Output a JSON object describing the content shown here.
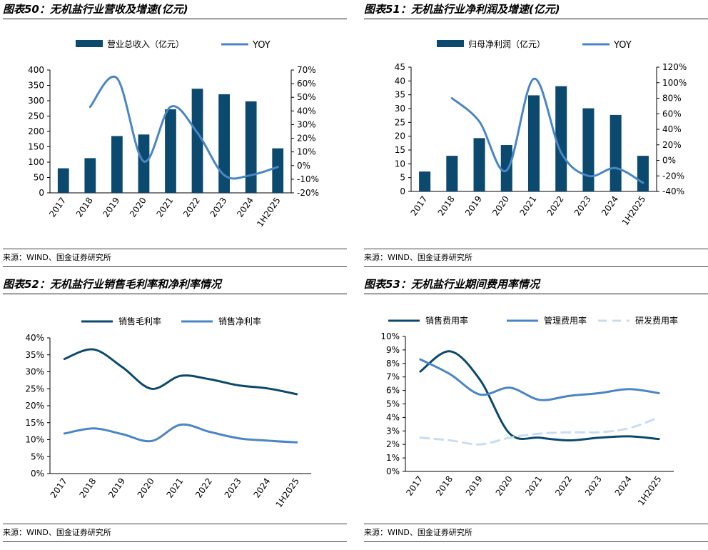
{
  "colors": {
    "dark": "#0b4a6e",
    "medium": "#4a86c5",
    "light": "#c9ddf0"
  },
  "panels": [
    {
      "title": "图表50：无机盐行业营收及增速(亿元)",
      "source": "来源：WIND、国金证券研究所",
      "chart_data": {
        "type": "bar",
        "categories": [
          "2017",
          "2018",
          "2019",
          "2020",
          "2021",
          "2022",
          "2023",
          "2024",
          "1H2025"
        ],
        "ylim": [
          0,
          400
        ],
        "yticks": [
          "0",
          "50",
          "100",
          "150",
          "200",
          "250",
          "300",
          "350",
          "400"
        ],
        "y2lim": [
          -20,
          70
        ],
        "y2ticks": [
          "-20%",
          "-10%",
          "0%",
          "10%",
          "20%",
          "30%",
          "40%",
          "50%",
          "60%",
          "70%"
        ],
        "legend_position": "top",
        "series": [
          {
            "name": "营业总收入（亿元）",
            "type": "bar",
            "axis": "left",
            "values": [
              80,
              113,
              185,
              190,
              272,
              339,
              321,
              298,
              145
            ]
          },
          {
            "name": "YOY",
            "type": "line",
            "axis": "right",
            "values": [
              null,
              43,
              64,
              3,
              43,
              24,
              -7,
              -7,
              -1
            ]
          }
        ]
      }
    },
    {
      "title": "图表51：无机盐行业净利润及增速(亿元)",
      "source": "来源：WIND、国金证券研究所",
      "chart_data": {
        "type": "bar",
        "categories": [
          "2017",
          "2018",
          "2019",
          "2020",
          "2021",
          "2022",
          "2023",
          "2024",
          "1H2025"
        ],
        "ylim": [
          0,
          45
        ],
        "yticks": [
          "0",
          "5",
          "10",
          "15",
          "20",
          "25",
          "30",
          "35",
          "40",
          "45"
        ],
        "y2lim": [
          -40,
          120
        ],
        "y2ticks": [
          "-40%",
          "-20%",
          "0%",
          "20%",
          "40%",
          "60%",
          "80%",
          "100%",
          "120%"
        ],
        "legend_position": "top",
        "series": [
          {
            "name": "归母净利润（亿元）",
            "type": "bar",
            "axis": "left",
            "values": [
              7.2,
              12.9,
              19.3,
              16.8,
              34.8,
              38.1,
              30.1,
              27.7,
              12.9
            ]
          },
          {
            "name": "YOY",
            "type": "line",
            "axis": "right",
            "values": [
              null,
              80,
              50,
              -13,
              105,
              10,
              -20,
              -10,
              -29
            ]
          }
        ]
      }
    },
    {
      "title": "图表52：无机盐行业销售毛利率和净利率情况",
      "source": "来源：WIND、国金证券研究所",
      "chart_data": {
        "type": "line",
        "categories": [
          "2017",
          "2018",
          "2019",
          "2020",
          "2021",
          "2022",
          "2023",
          "2024",
          "1H2025"
        ],
        "ylim": [
          0,
          40
        ],
        "yticks": [
          "0%",
          "5%",
          "10%",
          "15%",
          "20%",
          "25%",
          "30%",
          "35%",
          "40%"
        ],
        "legend_position": "top",
        "series": [
          {
            "name": "销售毛利率",
            "values": [
              33.8,
              36.6,
              31.3,
              25.0,
              28.8,
              27.8,
              26.0,
              25.1,
              23.4
            ]
          },
          {
            "name": "销售净利率",
            "values": [
              11.8,
              13.3,
              11.6,
              9.6,
              14.4,
              12.3,
              10.4,
              9.7,
              9.2
            ]
          }
        ]
      }
    },
    {
      "title": "图表53：无机盐行业期间费用率情况",
      "source": "来源：WIND、国金证券研究所",
      "chart_data": {
        "type": "line",
        "categories": [
          "2017",
          "2018",
          "2019",
          "2020",
          "2021",
          "2022",
          "2023",
          "2024",
          "1H2025"
        ],
        "ylim": [
          0,
          10
        ],
        "yticks": [
          "0%",
          "1%",
          "2%",
          "3%",
          "4%",
          "5%",
          "6%",
          "7%",
          "8%",
          "9%",
          "10%"
        ],
        "legend_position": "top",
        "series": [
          {
            "name": "销售费用率",
            "values": [
              7.4,
              8.9,
              6.8,
              2.8,
              2.5,
              2.3,
              2.5,
              2.6,
              2.4
            ]
          },
          {
            "name": "管理费用率",
            "values": [
              8.3,
              7.2,
              5.7,
              6.2,
              5.3,
              5.6,
              5.8,
              6.1,
              5.8
            ]
          },
          {
            "name": "研发费用率",
            "values": [
              2.5,
              2.3,
              2.0,
              2.5,
              2.8,
              2.9,
              2.9,
              3.2,
              4.0
            ]
          }
        ]
      }
    }
  ]
}
